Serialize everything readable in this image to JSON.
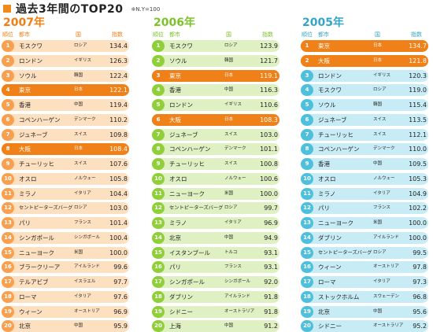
{
  "header": {
    "title": "過去3年間のTOP20",
    "note": "※N.Y=100"
  },
  "columns": {
    "rank": "順位",
    "city": "都市",
    "country": "国",
    "index": "指数"
  },
  "colors": {
    "highlight": "#f08018",
    "y2007": "#f07f14",
    "y2006": "#7cc22a",
    "y2005": "#33a5c8"
  },
  "tables": [
    {
      "year": "2007年",
      "rows": [
        {
          "rank": "1",
          "city": "モスクワ",
          "country": "ロシア",
          "index": "134.4",
          "highlight": false
        },
        {
          "rank": "2",
          "city": "ロンドン",
          "country": "イギリス",
          "index": "126.3",
          "highlight": false
        },
        {
          "rank": "3",
          "city": "ソウル",
          "country": "韓国",
          "index": "122.4",
          "highlight": false
        },
        {
          "rank": "4",
          "city": "東京",
          "country": "日本",
          "index": "122.1",
          "highlight": true
        },
        {
          "rank": "5",
          "city": "香港",
          "country": "中国",
          "index": "119.4",
          "highlight": false
        },
        {
          "rank": "6",
          "city": "コペンハーゲン",
          "country": "デンマーク",
          "index": "110.2",
          "highlight": false
        },
        {
          "rank": "7",
          "city": "ジュネーブ",
          "country": "スイス",
          "index": "109.8",
          "highlight": false
        },
        {
          "rank": "8",
          "city": "大阪",
          "country": "日本",
          "index": "108.4",
          "highlight": true
        },
        {
          "rank": "9",
          "city": "チューリッヒ",
          "country": "スイス",
          "index": "107.6",
          "highlight": false
        },
        {
          "rank": "10",
          "city": "オスロ",
          "country": "ノルウェー",
          "index": "105.8",
          "highlight": false
        },
        {
          "rank": "11",
          "city": "ミラノ",
          "country": "イタリア",
          "index": "104.4",
          "highlight": false
        },
        {
          "rank": "12",
          "city": "セントピーターズバーグ",
          "country": "ロシア",
          "index": "103.0",
          "highlight": false
        },
        {
          "rank": "13",
          "city": "パリ",
          "country": "フランス",
          "index": "101.4",
          "highlight": false
        },
        {
          "rank": "14",
          "city": "シンガポール",
          "country": "シンガポール",
          "index": "100.4",
          "highlight": false
        },
        {
          "rank": "15",
          "city": "ニューヨーク",
          "country": "米国",
          "index": "100.0",
          "highlight": false
        },
        {
          "rank": "16",
          "city": "ブラークリーア",
          "country": "アイルランド",
          "index": "99.6",
          "highlight": false
        },
        {
          "rank": "17",
          "city": "テルアビブ",
          "country": "イスラエル",
          "index": "97.7",
          "highlight": false
        },
        {
          "rank": "18",
          "city": "ローマ",
          "country": "イタリア",
          "index": "97.6",
          "highlight": false
        },
        {
          "rank": "19",
          "city": "ウィーン",
          "country": "オーストリア",
          "index": "96.9",
          "highlight": false
        },
        {
          "rank": "20",
          "city": "北京",
          "country": "中国",
          "index": "95.9",
          "highlight": false
        }
      ]
    },
    {
      "year": "2006年",
      "rows": [
        {
          "rank": "1",
          "city": "モスクワ",
          "country": "ロシア",
          "index": "123.9",
          "highlight": false
        },
        {
          "rank": "2",
          "city": "ソウル",
          "country": "韓国",
          "index": "121.7",
          "highlight": false
        },
        {
          "rank": "3",
          "city": "東京",
          "country": "日本",
          "index": "119.1",
          "highlight": true
        },
        {
          "rank": "4",
          "city": "香港",
          "country": "中国",
          "index": "116.3",
          "highlight": false
        },
        {
          "rank": "5",
          "city": "ロンドン",
          "country": "イギリス",
          "index": "110.6",
          "highlight": false
        },
        {
          "rank": "6",
          "city": "大阪",
          "country": "日本",
          "index": "108.3",
          "highlight": true
        },
        {
          "rank": "7",
          "city": "ジュネーブ",
          "country": "スイス",
          "index": "103.0",
          "highlight": false
        },
        {
          "rank": "8",
          "city": "コペンハーゲン",
          "country": "デンマーク",
          "index": "101.1",
          "highlight": false
        },
        {
          "rank": "9",
          "city": "チューリッヒ",
          "country": "スイス",
          "index": "100.8",
          "highlight": false
        },
        {
          "rank": "10",
          "city": "オスロ",
          "country": "ノルウェー",
          "index": "100.6",
          "highlight": false
        },
        {
          "rank": "11",
          "city": "ニューヨーク",
          "country": "米国",
          "index": "100.0",
          "highlight": false
        },
        {
          "rank": "12",
          "city": "セントピーターズバーグ",
          "country": "ロシア",
          "index": "99.7",
          "highlight": false
        },
        {
          "rank": "13",
          "city": "ミラノ",
          "country": "イタリア",
          "index": "96.9",
          "highlight": false
        },
        {
          "rank": "14",
          "city": "北京",
          "country": "中国",
          "index": "94.9",
          "highlight": false
        },
        {
          "rank": "15",
          "city": "イスタンブール",
          "country": "トルコ",
          "index": "93.1",
          "highlight": false
        },
        {
          "rank": "16",
          "city": "パリ",
          "country": "フランス",
          "index": "93.1",
          "highlight": false
        },
        {
          "rank": "17",
          "city": "シンガポール",
          "country": "シンガポール",
          "index": "92.0",
          "highlight": false
        },
        {
          "rank": "18",
          "city": "ダブリン",
          "country": "アイルランド",
          "index": "91.8",
          "highlight": false
        },
        {
          "rank": "19",
          "city": "シドニー",
          "country": "オーストラリア",
          "index": "91.8",
          "highlight": false
        },
        {
          "rank": "20",
          "city": "上海",
          "country": "中国",
          "index": "91.2",
          "highlight": false
        }
      ]
    },
    {
      "year": "2005年",
      "rows": [
        {
          "rank": "1",
          "city": "東京",
          "country": "日本",
          "index": "134.7",
          "highlight": true
        },
        {
          "rank": "2",
          "city": "大阪",
          "country": "日本",
          "index": "121.8",
          "highlight": true
        },
        {
          "rank": "3",
          "city": "ロンドン",
          "country": "イギリス",
          "index": "120.3",
          "highlight": false
        },
        {
          "rank": "4",
          "city": "モスクワ",
          "country": "ロシア",
          "index": "119.0",
          "highlight": false
        },
        {
          "rank": "5",
          "city": "ソウル",
          "country": "韓国",
          "index": "115.4",
          "highlight": false
        },
        {
          "rank": "6",
          "city": "ジュネーブ",
          "country": "スイス",
          "index": "113.5",
          "highlight": false
        },
        {
          "rank": "7",
          "city": "チューリッヒ",
          "country": "スイス",
          "index": "112.1",
          "highlight": false
        },
        {
          "rank": "8",
          "city": "コペンハーゲン",
          "country": "デンマーク",
          "index": "110.0",
          "highlight": false
        },
        {
          "rank": "9",
          "city": "香港",
          "country": "中国",
          "index": "109.5",
          "highlight": false
        },
        {
          "rank": "10",
          "city": "オスロ",
          "country": "ノルウェー",
          "index": "105.3",
          "highlight": false
        },
        {
          "rank": "11",
          "city": "ミラノ",
          "country": "イタリア",
          "index": "104.9",
          "highlight": false
        },
        {
          "rank": "12",
          "city": "パリ",
          "country": "フランス",
          "index": "102.2",
          "highlight": false
        },
        {
          "rank": "13",
          "city": "ニューヨーク",
          "country": "米国",
          "index": "100.0",
          "highlight": false
        },
        {
          "rank": "14",
          "city": "ダブリン",
          "country": "アイルランド",
          "index": "100.0",
          "highlight": false
        },
        {
          "rank": "15",
          "city": "セントピーターズバーグ",
          "country": "ロシア",
          "index": "99.5",
          "highlight": false
        },
        {
          "rank": "16",
          "city": "ウィーン",
          "country": "オーストリア",
          "index": "97.8",
          "highlight": false
        },
        {
          "rank": "17",
          "city": "ローマ",
          "country": "イタリア",
          "index": "97.3",
          "highlight": false
        },
        {
          "rank": "18",
          "city": "ストックホルム",
          "country": "スウェーデン",
          "index": "96.8",
          "highlight": false
        },
        {
          "rank": "19",
          "city": "北京",
          "country": "中国",
          "index": "95.6",
          "highlight": false
        },
        {
          "rank": "20",
          "city": "シドニー",
          "country": "オーストラリア",
          "index": "95.2",
          "highlight": false
        }
      ]
    }
  ]
}
